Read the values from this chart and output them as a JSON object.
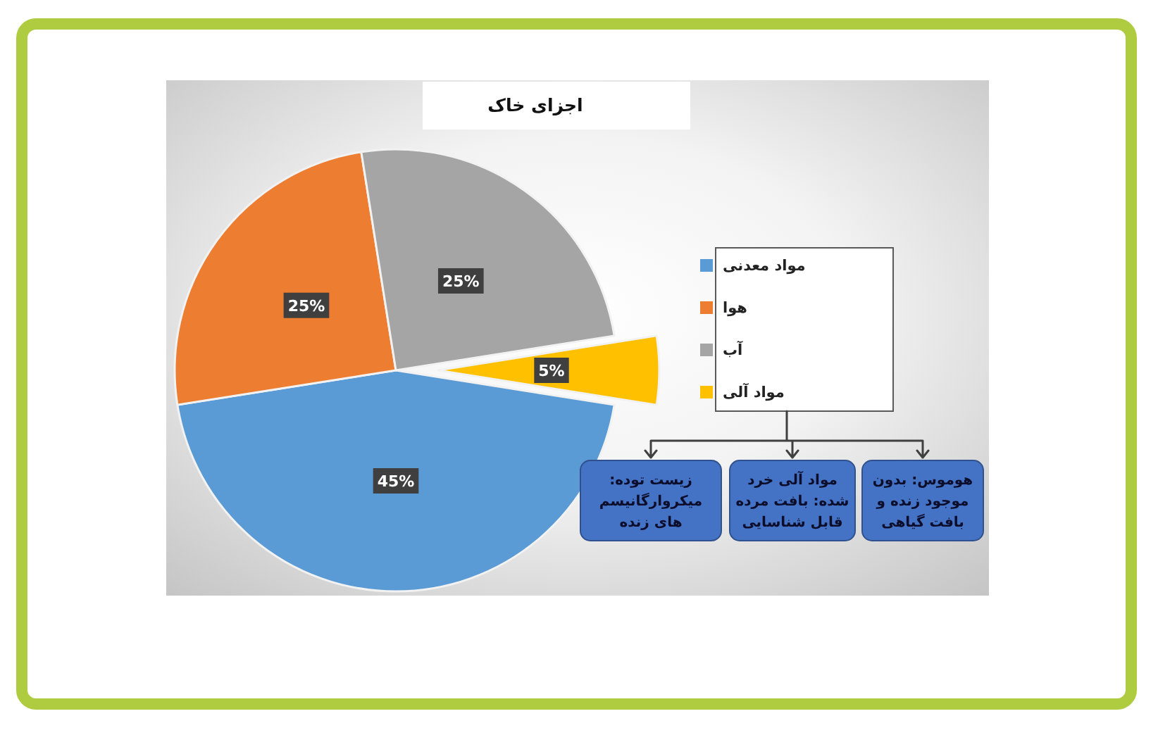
{
  "chart_data": {
    "type": "pie",
    "title": "اجزای خاک",
    "categories": [
      "مواد معدنی",
      "هوا",
      "آب",
      "مواد آلی"
    ],
    "values": [
      45,
      25,
      25,
      5
    ],
    "colors": [
      "#5b9bd5",
      "#ed7d31",
      "#a5a5a5",
      "#ffc000"
    ],
    "value_labels": [
      "45%",
      "25%",
      "25%",
      "5%"
    ],
    "legend": "right",
    "annotations": [
      "زیست توده: میکروارگانیسم های زنده",
      "مواد آلی خرد شده: بافت مرده قابل شناسایی",
      "هوموس: بدون موجود زنده و بافت گیاهی"
    ]
  }
}
